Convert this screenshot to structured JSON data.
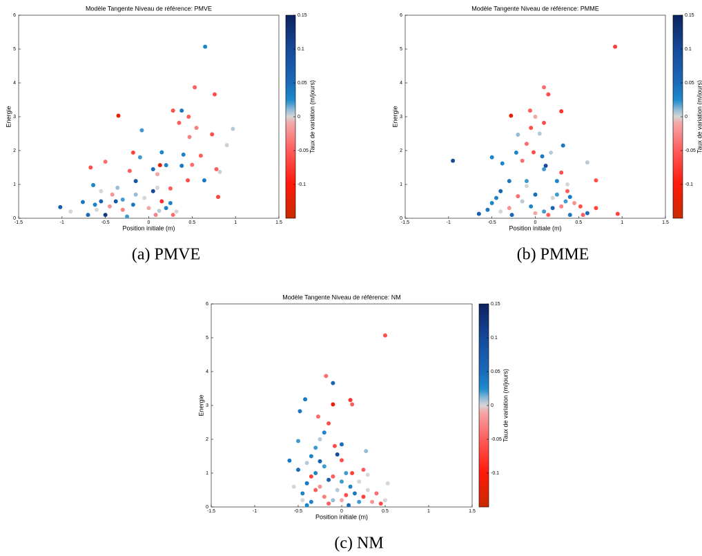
{
  "chart_data": [
    {
      "type": "scatter",
      "title": "Modèle Tangente Niveau de référence: PMVE",
      "xlabel": "Position initiale (m)",
      "ylabel": "Energie",
      "colorbar_label": "Taux de variation (m/jours)",
      "caption": "(a) PMVE",
      "xlim": [
        -1.5,
        1.5
      ],
      "xticks": [
        -1.5,
        -1,
        -0.5,
        0,
        0.5,
        1,
        1.5
      ],
      "ylim": [
        0,
        6
      ],
      "yticks": [
        0,
        1,
        2,
        3,
        4,
        5,
        6
      ],
      "clim": [
        -0.15,
        0.15
      ],
      "cticks": [
        -0.1,
        -0.05,
        0,
        0.05,
        0.1,
        0.15
      ],
      "x": [
        0.65,
        0.53,
        0.76,
        -0.35,
        0.38,
        0.28,
        0.46,
        0.35,
        0.55,
        0.97,
        0.73,
        -0.08,
        0.47,
        0.9,
        -0.18,
        0.15,
        0.6,
        0.4,
        -0.1,
        -0.5,
        0.2,
        0.13,
        -0.67,
        0.05,
        0.5,
        0.78,
        0.38,
        -0.22,
        0.82,
        0.1,
        0.64,
        -0.15,
        0.45,
        -0.64,
        0.25,
        -0.36,
        0.8,
        -0.42,
        0.05,
        -0.55,
        -0.05,
        0.2,
        -0.76,
        -1.02,
        -0.9,
        -0.62,
        -0.3,
        -0.5,
        -0.18,
        0.15,
        0.32,
        0.0,
        -0.7,
        -0.25,
        0.12,
        -0.38,
        0.08,
        -0.15,
        -0.45,
        0.25,
        -0.55,
        -0.3,
        0.28,
        -0.6,
        0.1
      ],
      "values": [
        5.07,
        3.87,
        3.66,
        3.03,
        3.18,
        3.18,
        3.0,
        2.82,
        2.67,
        2.64,
        2.48,
        2.6,
        2.4,
        2.16,
        1.94,
        1.95,
        1.85,
        1.88,
        1.8,
        1.67,
        1.57,
        1.57,
        1.5,
        1.45,
        1.58,
        1.45,
        1.55,
        1.4,
        1.37,
        1.3,
        1.12,
        1.1,
        1.12,
        0.98,
        0.88,
        0.9,
        0.63,
        0.7,
        0.8,
        0.5,
        0.6,
        0.3,
        0.48,
        0.33,
        0.2,
        0.4,
        0.25,
        0.1,
        0.4,
        0.5,
        0.2,
        0.3,
        0.1,
        0.05,
        0.22,
        0.5,
        0.1,
        0.7,
        0.35,
        0.45,
        0.8,
        0.55,
        0.1,
        0.25,
        0.9
      ],
      "c": [
        0.03,
        -0.05,
        -0.06,
        -0.12,
        0.04,
        -0.06,
        -0.05,
        -0.05,
        -0.03,
        0.005,
        -0.06,
        0.02,
        -0.03,
        0.002,
        -0.07,
        0.03,
        -0.05,
        0.03,
        0.02,
        -0.04,
        0.03,
        -0.13,
        -0.06,
        0.05,
        -0.04,
        -0.05,
        0.04,
        -0.05,
        0.002,
        -0.01,
        0.04,
        0.08,
        -0.06,
        0.03,
        -0.05,
        0.01,
        -0.07,
        -0.02,
        0.1,
        0.06,
        0.0,
        0.03,
        0.04,
        0.07,
        0.0,
        0.03,
        -0.03,
        0.12,
        0.04,
        -0.08,
        0.0,
        -0.01,
        0.05,
        0.02,
        0.005,
        0.08,
        -0.03,
        0.01,
        -0.02,
        0.03,
        0.0,
        0.02,
        -0.04,
        0.0,
        0.0
      ]
    },
    {
      "type": "scatter",
      "title": "Modèle Tangente Niveau de référence: PMME",
      "xlabel": "Position initiale (m)",
      "ylabel": "Energie",
      "colorbar_label": "Taux de variation (m/jours)",
      "caption": "(b) PMME",
      "xlim": [
        -1.5,
        1.5
      ],
      "xticks": [
        -1.5,
        -1,
        -0.5,
        0,
        0.5,
        1,
        1.5
      ],
      "ylim": [
        0,
        6
      ],
      "yticks": [
        0,
        1,
        2,
        3,
        4,
        5,
        6
      ],
      "clim": [
        -0.15,
        0.15
      ],
      "cticks": [
        -0.1,
        -0.05,
        0,
        0.05,
        0.1,
        0.15
      ],
      "x": [
        0.92,
        0.1,
        0.15,
        -0.28,
        -0.06,
        0.3,
        0.0,
        0.1,
        -0.05,
        0.05,
        -0.2,
        -0.1,
        0.32,
        0.18,
        -0.22,
        -0.02,
        0.08,
        -0.5,
        -0.95,
        0.6,
        0.12,
        -0.15,
        0.3,
        -0.38,
        0.1,
        0.7,
        -0.3,
        0.25,
        0.37,
        -0.1,
        0.37,
        -0.4,
        0.0,
        -0.45,
        0.4,
        0.2,
        0.95,
        0.52,
        0.55,
        0.7,
        0.6,
        -0.65,
        -0.5,
        -0.3,
        0.1,
        -0.15,
        0.3,
        -0.27,
        0.0,
        0.4,
        -0.05,
        0.2,
        -0.4,
        0.35,
        -0.2,
        0.45,
        -0.55,
        0.15,
        -0.1,
        0.25
      ],
      "values": [
        5.07,
        3.87,
        3.66,
        3.03,
        3.18,
        3.16,
        3.0,
        2.82,
        2.67,
        2.5,
        2.47,
        2.2,
        2.15,
        1.94,
        1.94,
        1.95,
        1.83,
        1.8,
        1.7,
        1.65,
        1.55,
        1.7,
        1.35,
        1.62,
        1.45,
        1.12,
        1.1,
        1.1,
        1.0,
        1.1,
        0.8,
        0.8,
        0.7,
        0.6,
        0.63,
        0.6,
        0.13,
        0.35,
        0.1,
        0.3,
        0.15,
        0.13,
        0.45,
        0.3,
        0.2,
        0.5,
        0.35,
        0.1,
        0.15,
        0.1,
        0.35,
        0.3,
        0.2,
        0.5,
        0.65,
        0.45,
        0.25,
        0.1,
        0.95,
        0.7
      ],
      "c": [
        -0.07,
        -0.04,
        -0.06,
        -0.12,
        -0.05,
        -0.08,
        -0.01,
        -0.06,
        -0.06,
        0.005,
        0.01,
        -0.04,
        0.04,
        0.005,
        0.03,
        -0.06,
        0.04,
        0.03,
        0.1,
        0.005,
        0.1,
        -0.04,
        -0.06,
        0.03,
        0.02,
        -0.06,
        0.04,
        0.03,
        0.0,
        0.02,
        -0.05,
        0.06,
        0.05,
        0.03,
        0.04,
        0.0,
        -0.07,
        -0.06,
        -0.05,
        -0.07,
        0.05,
        0.07,
        0.03,
        -0.02,
        0.02,
        0.005,
        -0.03,
        0.06,
        -0.01,
        0.04,
        0.03,
        0.06,
        0.0,
        0.02,
        -0.04,
        -0.02,
        0.04,
        -0.05,
        0.0,
        0.02
      ]
    },
    {
      "type": "scatter",
      "title": "Modèle Tangente Niveau de référence: NM",
      "xlabel": "Position initiale (m)",
      "ylabel": "Energie",
      "colorbar_label": "Taux de variation (m/jours)",
      "caption": "(c) NM",
      "xlim": [
        -1.5,
        1.5
      ],
      "xticks": [
        -1.5,
        -1,
        -0.5,
        0,
        0.5,
        1,
        1.5
      ],
      "ylim": [
        0,
        6
      ],
      "yticks": [
        0,
        1,
        2,
        3,
        4,
        5,
        6
      ],
      "clim": [
        -0.15,
        0.15
      ],
      "cticks": [
        -0.1,
        -0.05,
        0,
        0.05,
        0.1,
        0.15
      ],
      "x": [
        0.5,
        -0.18,
        -0.1,
        -0.1,
        0.1,
        0.12,
        -0.42,
        -0.48,
        -0.27,
        -0.15,
        -0.2,
        -0.25,
        -0.5,
        -0.08,
        0.0,
        -0.3,
        0.28,
        -0.05,
        -0.6,
        -0.35,
        -0.25,
        0.0,
        -0.5,
        -0.4,
        0.25,
        0.12,
        -0.2,
        -0.3,
        0.05,
        -0.1,
        0.3,
        -0.4,
        -0.15,
        0.2,
        -0.35,
        0.0,
        0.53,
        0.5,
        -0.55,
        -0.45,
        -0.3,
        -0.2,
        0.05,
        0.15,
        -0.1,
        0.25,
        -0.35,
        0.08,
        0.35,
        -0.05,
        0.4,
        -0.25,
        0.1,
        -0.45,
        0.3,
        -0.15,
        0.2,
        -0.4,
        0.0,
        0.45
      ],
      "values": [
        5.07,
        3.87,
        3.66,
        3.03,
        3.16,
        3.03,
        3.18,
        2.83,
        2.67,
        2.47,
        2.2,
        2.0,
        1.95,
        1.8,
        1.85,
        1.75,
        1.65,
        1.55,
        1.37,
        1.5,
        1.35,
        1.38,
        1.1,
        1.3,
        1.1,
        1.0,
        1.2,
        1.0,
        1.0,
        0.9,
        0.95,
        0.7,
        0.8,
        0.75,
        0.9,
        0.75,
        0.7,
        0.2,
        0.6,
        0.4,
        0.5,
        0.3,
        0.35,
        0.4,
        0.2,
        0.3,
        0.15,
        0.05,
        0.15,
        0.5,
        0.4,
        0.6,
        0.6,
        0.2,
        0.5,
        0.1,
        0.15,
        0.05,
        0.2,
        0.1
      ],
      "c": [
        -0.06,
        -0.04,
        0.06,
        -0.12,
        -0.08,
        -0.05,
        0.04,
        0.04,
        -0.04,
        -0.06,
        0.03,
        0.005,
        0.02,
        -0.06,
        0.05,
        0.02,
        0.01,
        0.1,
        0.04,
        0.03,
        0.06,
        -0.06,
        0.05,
        0.005,
        -0.05,
        -0.07,
        0.02,
        0.03,
        0.02,
        -0.05,
        0.0,
        0.04,
        0.06,
        0.0,
        -0.07,
        0.02,
        0.0,
        0.0,
        0.0,
        0.03,
        -0.05,
        -0.03,
        -0.06,
        0.04,
        0.01,
        -0.07,
        0.03,
        0.05,
        -0.02,
        0.005,
        -0.04,
        -0.02,
        0.03,
        0.0,
        0.0,
        -0.05,
        0.02,
        0.03,
        -0.01,
        -0.06
      ]
    }
  ]
}
